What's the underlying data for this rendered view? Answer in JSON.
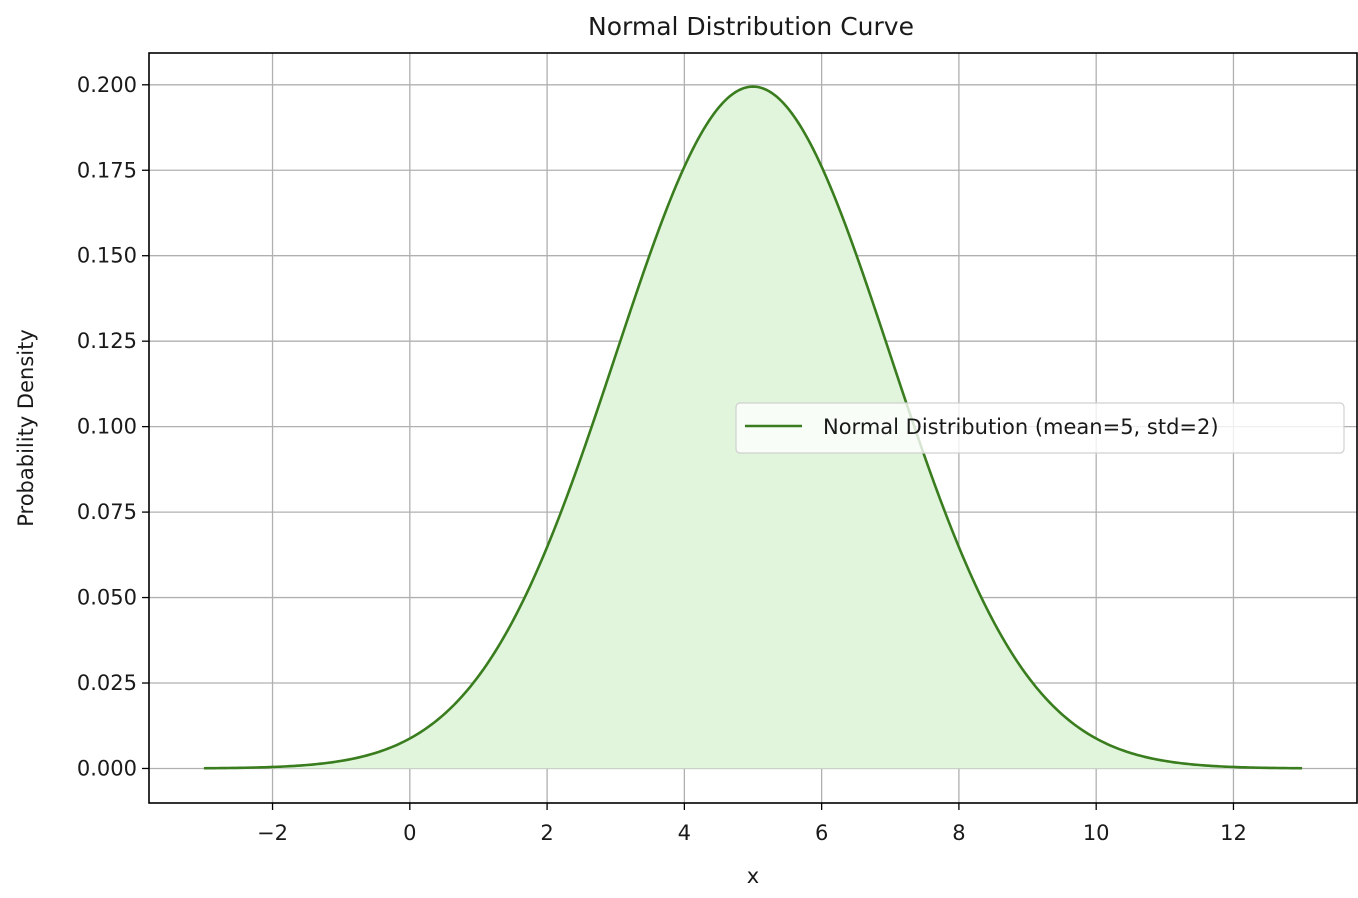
{
  "chart_data": {
    "type": "line",
    "title": "Normal Distribution Curve",
    "xlabel": "x",
    "ylabel": "Probability Density",
    "xlim": [
      -3.8,
      13.8
    ],
    "ylim": [
      -0.0101,
      0.2093
    ],
    "x_ticks": [
      -2,
      0,
      2,
      4,
      6,
      8,
      10,
      12
    ],
    "x_tick_labels": [
      "−2",
      "0",
      "2",
      "4",
      "6",
      "8",
      "10",
      "12"
    ],
    "y_ticks": [
      0.0,
      0.025,
      0.05,
      0.075,
      0.1,
      0.125,
      0.15,
      0.175,
      0.2
    ],
    "y_tick_labels": [
      "0.000",
      "0.025",
      "0.050",
      "0.075",
      "0.100",
      "0.125",
      "0.150",
      "0.175",
      "0.200"
    ],
    "grid": true,
    "legend_position": "center right",
    "series": [
      {
        "name": "Normal Distribution (mean=5, std=2)",
        "mean": 5,
        "std": 2,
        "x_range": [
          -3,
          13
        ],
        "color": "#3a7d1e",
        "fill_color": "#e0f5dc",
        "x": [
          -3,
          -2,
          -1,
          0,
          1,
          2,
          3,
          4,
          5,
          6,
          7,
          8,
          9,
          10,
          11,
          12,
          13
        ],
        "values": [
          0.0001,
          0.0008,
          0.0022,
          0.0088,
          0.027,
          0.0648,
          0.121,
          0.176,
          0.1995,
          0.176,
          0.121,
          0.0648,
          0.027,
          0.0088,
          0.0022,
          0.0008,
          0.0001
        ]
      }
    ]
  },
  "colors": {
    "line": "#3a7d1e",
    "fill": "#e0f5dc",
    "grid": "#b0b0b0",
    "axes": "#000000"
  }
}
